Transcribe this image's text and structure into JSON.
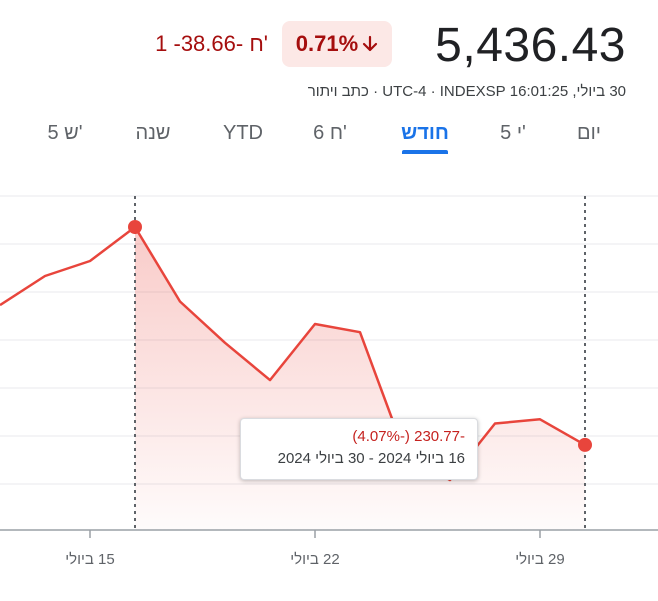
{
  "header": {
    "price": "5,436.43",
    "change_percent": "0.71%",
    "change_abs": "1 -38.66- ח'",
    "meta": "30 ביולי, 16:01:25 UTC-4 · INDEXSP · כתב ויתור"
  },
  "tabs": [
    {
      "label": "יום",
      "active": false
    },
    {
      "label": "5 י'",
      "active": false
    },
    {
      "label": "חודש",
      "active": true
    },
    {
      "label": "6 ח'",
      "active": false
    },
    {
      "label": "YTD",
      "active": false
    },
    {
      "label": "שנה",
      "active": false
    },
    {
      "label": "5 ש'",
      "active": false
    }
  ],
  "tooltip": {
    "change": "-230.77 (-4.07%)",
    "range": "16 ביולי 2024 - 30 ביולי 2024"
  },
  "colors": {
    "line": "#e8453c",
    "negative": "#a50e0e",
    "accent": "#1a73e8"
  },
  "chart_data": {
    "type": "area",
    "x": [
      "11 ביולי",
      "12 ביולי",
      "15 ביולי",
      "16 ביולי",
      "17 ביולי",
      "18 ביולי",
      "19 ביולי",
      "22 ביולי",
      "23 ביולי",
      "24 ביולי",
      "25 ביולי",
      "26 ביולי",
      "29 ביולי",
      "30 ביולי"
    ],
    "values": [
      5584.5,
      5615.35,
      5631.22,
      5667.2,
      5588.27,
      5544.59,
      5505.0,
      5564.41,
      5555.74,
      5427.13,
      5399.22,
      5459.1,
      5463.54,
      5436.43
    ],
    "xticks": [
      "15 ביולי",
      "22 ביולי",
      "29 ביולי"
    ],
    "highlight_start": "16 ביולי",
    "highlight_end": "30 ביולי",
    "grid": true
  }
}
